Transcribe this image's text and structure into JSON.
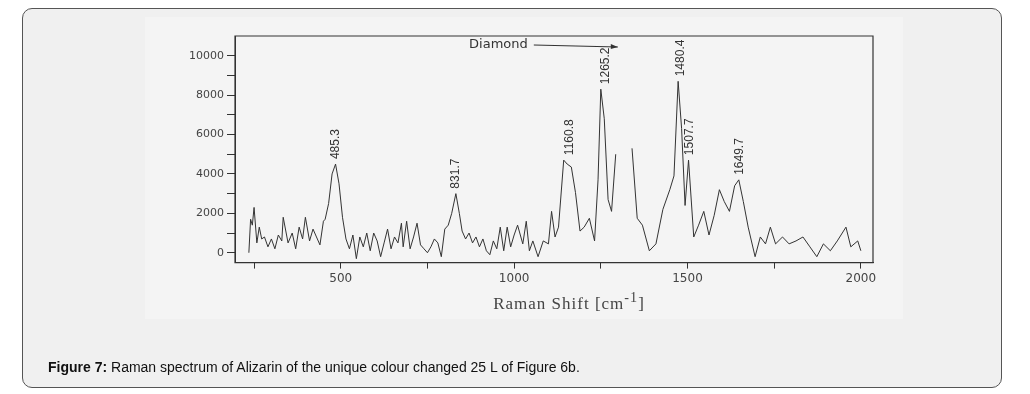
{
  "chart_data": {
    "type": "line",
    "xlabel": "Raman Shift [cm$^{-1}$]",
    "x": [
      235,
      240,
      245,
      250,
      258,
      265,
      272,
      280,
      290,
      300,
      310,
      320,
      330,
      334,
      348,
      360,
      370,
      380,
      390,
      398,
      410,
      420,
      430,
      440,
      450,
      455,
      465,
      475,
      485,
      495,
      505,
      515,
      525,
      535,
      545,
      555,
      565,
      575,
      585,
      595,
      605,
      615,
      625,
      635,
      645,
      655,
      665,
      675,
      680,
      690,
      700,
      710,
      720,
      730,
      740,
      750,
      760,
      770,
      780,
      790,
      800,
      810,
      820,
      832,
      842,
      850,
      860,
      870,
      880,
      890,
      900,
      910,
      920,
      930,
      940,
      950,
      960,
      970,
      980,
      990,
      1000,
      1010,
      1025,
      1035,
      1044,
      1054,
      1069,
      1084,
      1099,
      1108,
      1118,
      1128,
      1143,
      1153,
      1165,
      1177,
      1190,
      1202,
      1217,
      1232,
      1242,
      1250,
      1260,
      1271,
      1281,
      1293,
      1299,
      1330,
      1340,
      1355,
      1370,
      1390,
      1409,
      1429,
      1449,
      1461,
      1473,
      1483,
      1493,
      1503,
      1518,
      1532,
      1547,
      1562,
      1577,
      1592,
      1606,
      1621,
      1636,
      1648,
      1661,
      1675,
      1695,
      1710,
      1725,
      1739,
      1754,
      1774,
      1793,
      1813,
      1833,
      1853,
      1873,
      1892,
      1912,
      1932,
      1957,
      1971,
      1991,
      2000
    ],
    "series": [
      {
        "color": "#333333",
        "values": [
          0,
          1700,
          1400,
          2300,
          500,
          1300,
          700,
          800,
          300,
          700,
          200,
          900,
          600,
          1800,
          500,
          1000,
          200,
          1300,
          700,
          1800,
          600,
          1200,
          800,
          400,
          1600,
          1700,
          2500,
          4000,
          4500,
          3500,
          1800,
          700,
          200,
          900,
          -300,
          800,
          300,
          1000,
          100,
          1000,
          600,
          -200,
          500,
          1200,
          200,
          800,
          500,
          1500,
          300,
          1600,
          200,
          800,
          1500,
          400,
          200,
          0,
          300,
          700,
          500,
          -200,
          1200,
          1400,
          2000,
          3000,
          2000,
          1100,
          700,
          1000,
          500,
          800,
          300,
          700,
          100,
          -100,
          600,
          200,
          1300,
          100,
          1300,
          300,
          900,
          1400,
          450,
          1600,
          100,
          600,
          -200,
          600,
          450,
          2100,
          800,
          1300,
          4700,
          4500,
          4350,
          3050,
          1100,
          1300,
          1750,
          600,
          3700,
          8300,
          6800,
          2700,
          2100,
          5000,
          null,
          null,
          5300,
          1750,
          1400,
          100,
          450,
          2200,
          3200,
          3900,
          8700,
          6300,
          2400,
          4700,
          800,
          1400,
          2100,
          900,
          1900,
          3200,
          2600,
          2100,
          3400,
          3700,
          2600,
          1300,
          -200,
          800,
          450,
          1300,
          450,
          800,
          450,
          600,
          800,
          300,
          -200,
          450,
          100,
          600,
          1300,
          300,
          600,
          100
        ]
      }
    ],
    "xlim": [
      195,
      2035
    ],
    "xticks": [
      {
        "value": 250,
        "label": null
      },
      500,
      {
        "value": 750,
        "label": null
      },
      1000,
      {
        "value": 1250,
        "label": null
      },
      1500,
      {
        "value": 1750,
        "label": null
      },
      2000
    ],
    "ylim": [
      -500,
      11000
    ],
    "yticks": [
      0,
      {
        "value": 1000,
        "label": null
      },
      2000,
      {
        "value": 3000,
        "label": null
      },
      4000,
      {
        "value": 5000,
        "label": null
      },
      6000,
      {
        "value": 7000,
        "label": null
      },
      8000,
      {
        "value": 9000,
        "label": null
      },
      10000
    ],
    "grid": false,
    "legend": false,
    "marker": "none",
    "line_style": "solid",
    "annotations": [
      {
        "text": "485.3",
        "x": 485.3,
        "y": 4500
      },
      {
        "text": "831.7",
        "x": 831.7,
        "y": 3000
      },
      {
        "text": "1160.8",
        "x": 1160.8,
        "y": 4700
      },
      {
        "text": "1265.2",
        "x": 1265.2,
        "y": 8300
      },
      {
        "text": "1480.4",
        "x": 1480.4,
        "y": 8700
      },
      {
        "text": "1507.7",
        "x": 1507.7,
        "y": 4700
      },
      {
        "text": "1649.7",
        "x": 1649.7,
        "y": 3700
      },
      "Diamond",
      "Figure 7: Raman spectrum of Alizarin of the unique colour changed 25 L of Figure 6b."
    ]
  }
}
